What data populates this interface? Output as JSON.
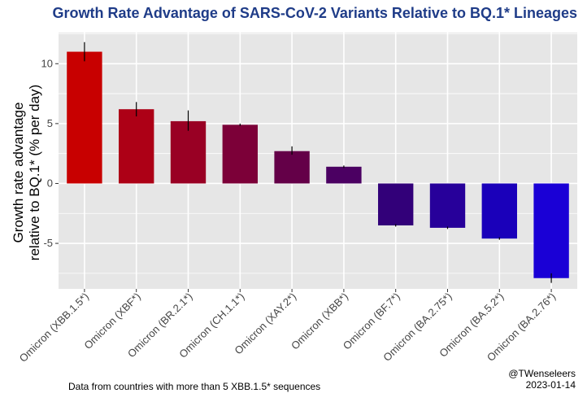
{
  "chart_data": {
    "type": "bar",
    "title": "Growth Rate Advantage of SARS-CoV-2 Variants Relative to BQ.1* Lineages",
    "ylabel_line1": "Growth rate advantage",
    "ylabel_line2": "relative to BQ.1* (% per day)",
    "xlabel": "",
    "ylim": [
      -8.8,
      12.6
    ],
    "yticks": [
      -5,
      0,
      5,
      10
    ],
    "grid": true,
    "legend": "none",
    "categories": [
      "Omicron (XBB.1.5*)",
      "Omicron (XBF*)",
      "Omicron (BR.2.1*)",
      "Omicron (CH.1.1*)",
      "Omicron (XAY.2*)",
      "Omicron (XBB*)",
      "Omicron (BF.7*)",
      "Omicron (BA.2.75*)",
      "Omicron (BA.5.2*)",
      "Omicron (BA.2.76*)"
    ],
    "values": [
      11.0,
      6.2,
      5.2,
      4.9,
      2.7,
      1.4,
      -3.5,
      -3.7,
      -4.6,
      -7.9
    ],
    "error_low": [
      10.2,
      5.6,
      4.4,
      4.8,
      2.4,
      1.3,
      -3.6,
      -3.8,
      -4.7,
      -8.3
    ],
    "error_high": [
      11.8,
      6.8,
      6.1,
      5.0,
      3.1,
      1.5,
      -3.4,
      -3.6,
      -4.5,
      -7.5
    ],
    "colors": [
      "#c80000",
      "#ad0016",
      "#990024",
      "#7c0038",
      "#640048",
      "#4b0062",
      "#320079",
      "#27009a",
      "#1a00ba",
      "#1a00d6"
    ]
  },
  "footer": {
    "note": "Data from countries with more than 5 XBB.1.5* sequences",
    "credit_handle": "@TWenseleers",
    "credit_date": "2023-01-14"
  }
}
